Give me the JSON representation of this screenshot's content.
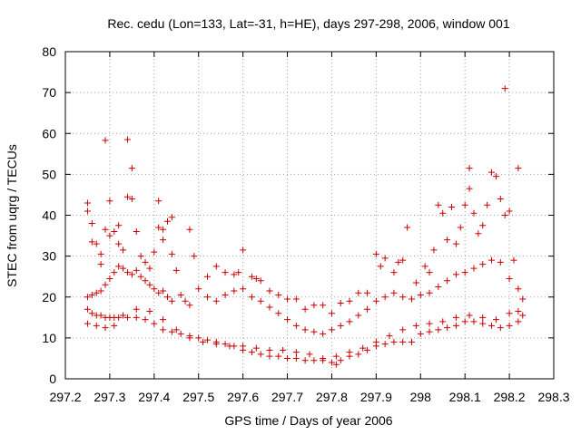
{
  "chart_data": {
    "type": "scatter",
    "title": "Rec. cedu (Lon=133, Lat=-31, h=HE), days 297-298, 2006, window 001",
    "xlabel": "GPS time / Days of year 2006",
    "ylabel": "STEC from uqrg / TECUs",
    "xlim": [
      297.2,
      298.3
    ],
    "ylim": [
      0,
      80
    ],
    "xticks": [
      "297.2",
      "297.3",
      "297.4",
      "297.5",
      "297.6",
      "297.7",
      "297.8",
      "297.9",
      "298",
      "298.1",
      "298.2",
      "298.3"
    ],
    "yticks": [
      "0",
      "10",
      "20",
      "30",
      "40",
      "50",
      "60",
      "70",
      "80"
    ],
    "grid": true,
    "marker": "+",
    "color": "#cc0000",
    "series": [
      {
        "name": "",
        "points": [
          [
            297.25,
            43.0
          ],
          [
            297.25,
            41.0
          ],
          [
            297.26,
            38.0
          ],
          [
            297.26,
            33.5
          ],
          [
            297.27,
            33.0
          ],
          [
            297.28,
            30.5
          ],
          [
            297.28,
            28.0
          ],
          [
            297.29,
            58.3
          ],
          [
            297.29,
            36.5
          ],
          [
            297.3,
            35.0
          ],
          [
            297.3,
            43.5
          ],
          [
            297.31,
            36.0
          ],
          [
            297.32,
            37.5
          ],
          [
            297.32,
            33.0
          ],
          [
            297.33,
            31.5
          ],
          [
            297.34,
            58.5
          ],
          [
            297.34,
            44.5
          ],
          [
            297.35,
            44.0
          ],
          [
            297.35,
            51.5
          ],
          [
            297.36,
            36.0
          ],
          [
            297.37,
            30.0
          ],
          [
            297.38,
            28.5
          ],
          [
            297.39,
            27.0
          ],
          [
            297.4,
            31.0
          ],
          [
            297.41,
            43.5
          ],
          [
            297.41,
            37.0
          ],
          [
            297.42,
            34.0
          ],
          [
            297.42,
            36.5
          ],
          [
            297.43,
            38.5
          ],
          [
            297.44,
            39.5
          ],
          [
            297.44,
            30.5
          ],
          [
            297.45,
            26.5
          ],
          [
            297.48,
            36.5
          ],
          [
            297.49,
            30.0
          ],
          [
            297.52,
            25.0
          ],
          [
            297.54,
            27.5
          ],
          [
            297.56,
            26.0
          ],
          [
            297.58,
            25.5
          ],
          [
            297.59,
            26.0
          ],
          [
            297.6,
            31.5
          ],
          [
            297.62,
            25.0
          ],
          [
            297.63,
            24.5
          ],
          [
            297.64,
            24.0
          ],
          [
            297.66,
            21.5
          ],
          [
            297.68,
            20.5
          ],
          [
            297.7,
            19.5
          ],
          [
            297.72,
            19.5
          ],
          [
            297.74,
            17.0
          ],
          [
            297.76,
            18.0
          ],
          [
            297.78,
            18.0
          ],
          [
            297.8,
            16.0
          ],
          [
            297.82,
            18.5
          ],
          [
            297.84,
            19.0
          ],
          [
            297.86,
            21.0
          ],
          [
            297.88,
            21.0
          ],
          [
            297.9,
            30.5
          ],
          [
            297.91,
            27.5
          ],
          [
            297.92,
            29.5
          ],
          [
            297.94,
            26.0
          ],
          [
            297.95,
            28.5
          ],
          [
            297.96,
            29.0
          ],
          [
            297.97,
            37.0
          ],
          [
            297.99,
            23.5
          ],
          [
            298.01,
            27.5
          ],
          [
            298.02,
            26.0
          ],
          [
            298.03,
            31.5
          ],
          [
            298.04,
            42.5
          ],
          [
            298.05,
            40.5
          ],
          [
            298.06,
            34.0
          ],
          [
            298.07,
            42.0
          ],
          [
            298.08,
            33.0
          ],
          [
            298.09,
            37.0
          ],
          [
            298.1,
            42.5
          ],
          [
            298.11,
            51.5
          ],
          [
            298.11,
            46.5
          ],
          [
            298.12,
            40.5
          ],
          [
            298.13,
            35.5
          ],
          [
            298.14,
            37.5
          ],
          [
            298.15,
            42.5
          ],
          [
            298.16,
            50.5
          ],
          [
            298.17,
            49.5
          ],
          [
            298.18,
            44.0
          ],
          [
            298.19,
            71.0
          ],
          [
            298.19,
            40.0
          ],
          [
            298.2,
            41.0
          ],
          [
            298.21,
            29.0
          ],
          [
            298.22,
            51.5
          ],
          [
            298.23,
            19.5
          ],
          [
            297.25,
            20.0
          ],
          [
            297.26,
            20.5
          ],
          [
            297.27,
            21.0
          ],
          [
            297.28,
            21.5
          ],
          [
            297.29,
            23.0
          ],
          [
            297.3,
            24.5
          ],
          [
            297.31,
            26.0
          ],
          [
            297.32,
            27.5
          ],
          [
            297.33,
            27.0
          ],
          [
            297.34,
            26.0
          ],
          [
            297.35,
            25.5
          ],
          [
            297.36,
            26.5
          ],
          [
            297.37,
            25.0
          ],
          [
            297.38,
            24.0
          ],
          [
            297.39,
            23.0
          ],
          [
            297.4,
            22.0
          ],
          [
            297.41,
            21.0
          ],
          [
            297.42,
            21.5
          ],
          [
            297.43,
            20.0
          ],
          [
            297.44,
            19.0
          ],
          [
            297.46,
            20.5
          ],
          [
            297.47,
            19.0
          ],
          [
            297.48,
            18.0
          ],
          [
            297.5,
            22.0
          ],
          [
            297.52,
            20.0
          ],
          [
            297.54,
            19.0
          ],
          [
            297.56,
            20.5
          ],
          [
            297.58,
            21.5
          ],
          [
            297.6,
            22.0
          ],
          [
            297.62,
            20.0
          ],
          [
            297.64,
            19.0
          ],
          [
            297.66,
            17.5
          ],
          [
            297.68,
            16.0
          ],
          [
            297.7,
            14.5
          ],
          [
            297.72,
            13.0
          ],
          [
            297.74,
            12.0
          ],
          [
            297.76,
            11.5
          ],
          [
            297.78,
            11.0
          ],
          [
            297.8,
            12.0
          ],
          [
            297.82,
            13.0
          ],
          [
            297.84,
            14.0
          ],
          [
            297.86,
            15.5
          ],
          [
            297.88,
            17.0
          ],
          [
            297.9,
            19.0
          ],
          [
            297.92,
            20.0
          ],
          [
            297.94,
            21.0
          ],
          [
            297.96,
            20.0
          ],
          [
            297.98,
            19.5
          ],
          [
            298.0,
            20.5
          ],
          [
            298.02,
            21.0
          ],
          [
            298.04,
            22.5
          ],
          [
            298.06,
            24.0
          ],
          [
            298.08,
            25.5
          ],
          [
            298.1,
            26.0
          ],
          [
            298.12,
            27.0
          ],
          [
            298.14,
            28.0
          ],
          [
            298.16,
            29.0
          ],
          [
            298.18,
            28.5
          ],
          [
            298.2,
            24.5
          ],
          [
            298.22,
            22.0
          ],
          [
            297.25,
            17.0
          ],
          [
            297.26,
            16.0
          ],
          [
            297.27,
            15.5
          ],
          [
            297.28,
            15.5
          ],
          [
            297.29,
            15.0
          ],
          [
            297.3,
            15.0
          ],
          [
            297.31,
            15.0
          ],
          [
            297.32,
            15.0
          ],
          [
            297.34,
            15.0
          ],
          [
            297.36,
            15.0
          ],
          [
            297.38,
            14.5
          ],
          [
            297.4,
            13.5
          ],
          [
            297.42,
            12.0
          ],
          [
            297.44,
            11.5
          ],
          [
            297.46,
            11.0
          ],
          [
            297.48,
            10.5
          ],
          [
            297.5,
            10.0
          ],
          [
            297.52,
            9.5
          ],
          [
            297.54,
            9.0
          ],
          [
            297.56,
            8.5
          ],
          [
            297.58,
            8.0
          ],
          [
            297.6,
            7.0
          ],
          [
            297.62,
            6.5
          ],
          [
            297.64,
            6.0
          ],
          [
            297.66,
            5.5
          ],
          [
            297.68,
            5.5
          ],
          [
            297.7,
            5.0
          ],
          [
            297.72,
            5.0
          ],
          [
            297.74,
            4.5
          ],
          [
            297.76,
            4.5
          ],
          [
            297.78,
            4.5
          ],
          [
            297.8,
            4.0
          ],
          [
            297.81,
            3.5
          ],
          [
            297.82,
            4.5
          ],
          [
            297.84,
            5.5
          ],
          [
            297.86,
            6.0
          ],
          [
            297.88,
            7.0
          ],
          [
            297.9,
            8.0
          ],
          [
            297.92,
            8.5
          ],
          [
            297.94,
            9.0
          ],
          [
            297.96,
            9.0
          ],
          [
            297.98,
            9.0
          ],
          [
            298.0,
            11.0
          ],
          [
            298.02,
            11.5
          ],
          [
            298.04,
            12.0
          ],
          [
            298.06,
            12.5
          ],
          [
            298.08,
            13.0
          ],
          [
            298.1,
            14.0
          ],
          [
            298.12,
            14.0
          ],
          [
            298.14,
            13.5
          ],
          [
            298.16,
            13.0
          ],
          [
            298.18,
            12.5
          ],
          [
            298.2,
            13.0
          ],
          [
            298.22,
            14.0
          ],
          [
            298.23,
            15.5
          ],
          [
            297.25,
            13.5
          ],
          [
            297.27,
            13.0
          ],
          [
            297.29,
            12.5
          ],
          [
            297.31,
            13.0
          ],
          [
            297.33,
            15.5
          ],
          [
            297.36,
            17.0
          ],
          [
            297.39,
            16.5
          ],
          [
            297.42,
            14.5
          ],
          [
            297.45,
            12.0
          ],
          [
            297.48,
            10.0
          ],
          [
            297.51,
            9.0
          ],
          [
            297.54,
            8.5
          ],
          [
            297.57,
            8.0
          ],
          [
            297.6,
            8.0
          ],
          [
            297.63,
            7.5
          ],
          [
            297.66,
            7.0
          ],
          [
            297.69,
            7.0
          ],
          [
            297.72,
            6.5
          ],
          [
            297.75,
            6.0
          ],
          [
            297.78,
            5.0
          ],
          [
            297.81,
            5.5
          ],
          [
            297.84,
            6.5
          ],
          [
            297.87,
            7.5
          ],
          [
            297.9,
            9.0
          ],
          [
            297.93,
            10.5
          ],
          [
            297.96,
            12.0
          ],
          [
            297.99,
            13.0
          ],
          [
            298.02,
            13.5
          ],
          [
            298.05,
            14.0
          ],
          [
            298.08,
            15.0
          ],
          [
            298.11,
            15.5
          ],
          [
            298.14,
            15.0
          ],
          [
            298.17,
            14.5
          ],
          [
            298.2,
            16.0
          ],
          [
            298.22,
            16.5
          ]
        ]
      }
    ]
  }
}
